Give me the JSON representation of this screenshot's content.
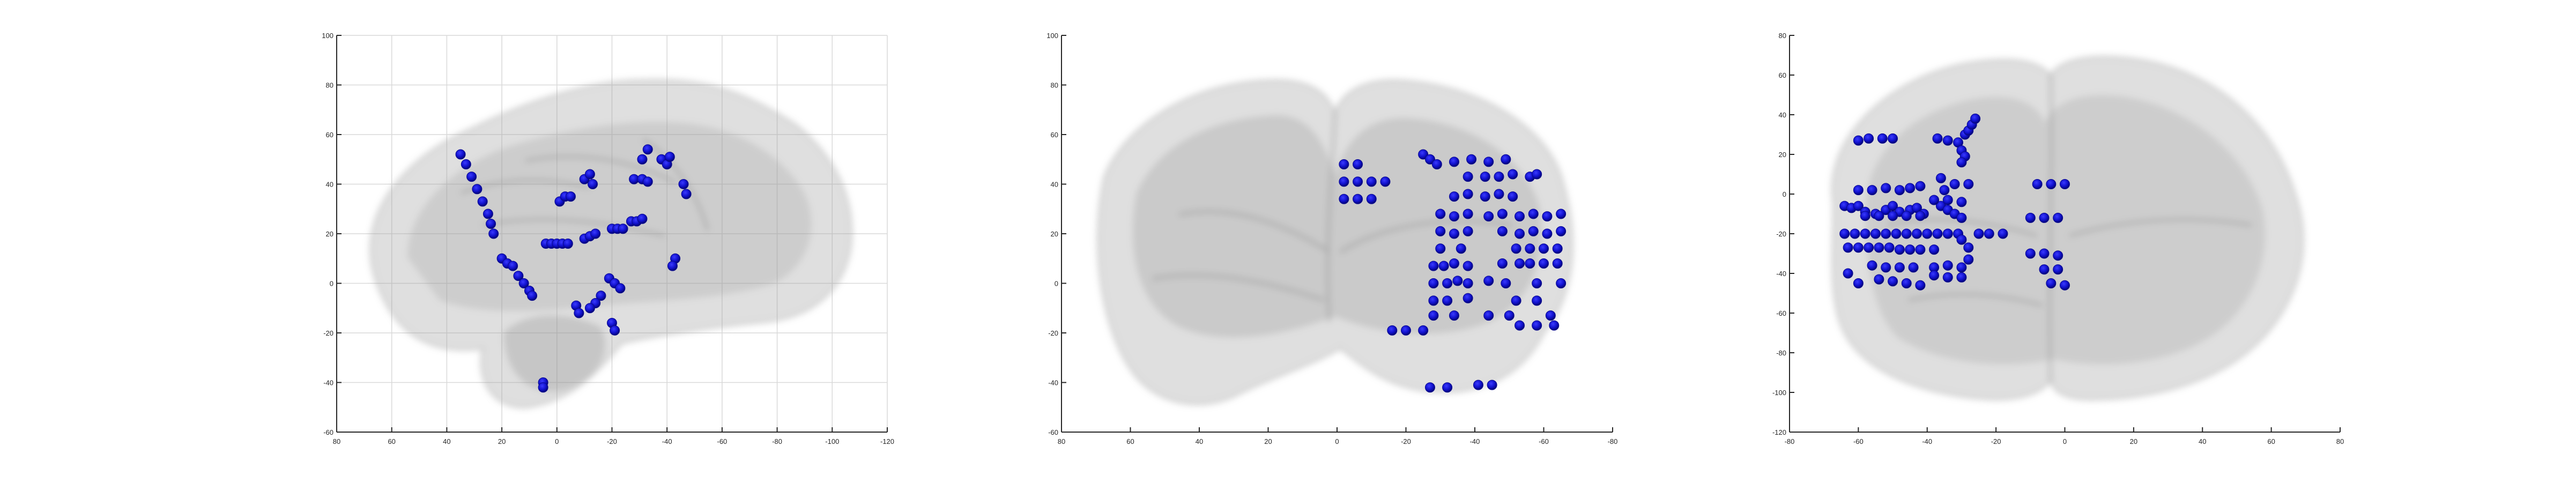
{
  "figure": {
    "background": "#ffffff",
    "axis_color": "#262626",
    "grid_color": "#d9d9d9",
    "brain_color": "#9a9a9a",
    "marker_color": "#1010cc"
  },
  "chart_data": [
    {
      "type": "scatter",
      "name": "sagittal",
      "grid": true,
      "xlim": [
        80,
        -120
      ],
      "ylim": [
        -60,
        100
      ],
      "xticks": [
        80,
        60,
        40,
        20,
        0,
        -20,
        -40,
        -60,
        -80,
        -100,
        -120
      ],
      "yticks": [
        -60,
        -40,
        -20,
        0,
        20,
        40,
        60,
        80,
        100
      ],
      "xtick_labels": [
        "80",
        "60",
        "40",
        "20",
        "0",
        "-20",
        "-40",
        "-60",
        "-80",
        "-100",
        "-120"
      ],
      "ytick_labels": [
        "-60",
        "-40",
        "-20",
        "0",
        "20",
        "40",
        "60",
        "80",
        "100"
      ],
      "points": [
        [
          35,
          52
        ],
        [
          33,
          48
        ],
        [
          31,
          43
        ],
        [
          29,
          38
        ],
        [
          27,
          33
        ],
        [
          25,
          28
        ],
        [
          24,
          24
        ],
        [
          23,
          20
        ],
        [
          20,
          10
        ],
        [
          18,
          8
        ],
        [
          16,
          7
        ],
        [
          14,
          3
        ],
        [
          12,
          0
        ],
        [
          10,
          -3
        ],
        [
          9,
          -5
        ],
        [
          4,
          16
        ],
        [
          2,
          16
        ],
        [
          0,
          16
        ],
        [
          -2,
          16
        ],
        [
          -4,
          16
        ],
        [
          -1,
          33
        ],
        [
          -3,
          35
        ],
        [
          -5,
          35
        ],
        [
          -10,
          18
        ],
        [
          -12,
          19
        ],
        [
          -14,
          20
        ],
        [
          -10,
          42
        ],
        [
          -12,
          44
        ],
        [
          -13,
          40
        ],
        [
          -20,
          22
        ],
        [
          -22,
          22
        ],
        [
          -24,
          22
        ],
        [
          -27,
          25
        ],
        [
          -29,
          25
        ],
        [
          -31,
          26
        ],
        [
          -28,
          42
        ],
        [
          -31,
          42
        ],
        [
          -33,
          41
        ],
        [
          -31,
          50
        ],
        [
          -33,
          54
        ],
        [
          -38,
          50
        ],
        [
          -40,
          48
        ],
        [
          -41,
          51
        ],
        [
          -46,
          40
        ],
        [
          -47,
          36
        ],
        [
          -43,
          10
        ],
        [
          -42,
          7
        ],
        [
          -19,
          2
        ],
        [
          -21,
          0
        ],
        [
          -23,
          -2
        ],
        [
          -20,
          -16
        ],
        [
          -21,
          -19
        ],
        [
          -16,
          -5
        ],
        [
          -14,
          -8
        ],
        [
          -12,
          -10
        ],
        [
          -7,
          -9
        ],
        [
          -8,
          -12
        ],
        [
          5,
          -40
        ],
        [
          5,
          -42
        ]
      ]
    },
    {
      "type": "scatter",
      "name": "coronal",
      "grid": false,
      "xlim": [
        80,
        -80
      ],
      "ylim": [
        -60,
        100
      ],
      "xticks": [
        80,
        60,
        40,
        20,
        0,
        -20,
        -40,
        -60,
        -80
      ],
      "yticks": [
        -60,
        -40,
        -20,
        0,
        20,
        40,
        60,
        80,
        100
      ],
      "xtick_labels": [
        "80",
        "60",
        "40",
        "20",
        "0",
        "-20",
        "-40",
        "-60",
        "-80"
      ],
      "ytick_labels": [
        "-60",
        "-40",
        "-20",
        "0",
        "20",
        "40",
        "60",
        "80",
        "100"
      ],
      "points": [
        [
          -2,
          48
        ],
        [
          -6,
          48
        ],
        [
          -2,
          41
        ],
        [
          -6,
          41
        ],
        [
          -10,
          41
        ],
        [
          -14,
          41
        ],
        [
          -2,
          34
        ],
        [
          -6,
          34
        ],
        [
          -10,
          34
        ],
        [
          -25,
          52
        ],
        [
          -27,
          50
        ],
        [
          -29,
          48
        ],
        [
          -34,
          49
        ],
        [
          -39,
          50
        ],
        [
          -44,
          49
        ],
        [
          -49,
          50
        ],
        [
          -38,
          43
        ],
        [
          -43,
          43
        ],
        [
          -47,
          43
        ],
        [
          -51,
          44
        ],
        [
          -56,
          43
        ],
        [
          -58,
          44
        ],
        [
          -34,
          35
        ],
        [
          -38,
          36
        ],
        [
          -43,
          35
        ],
        [
          -47,
          36
        ],
        [
          -51,
          35
        ],
        [
          -30,
          28
        ],
        [
          -34,
          27
        ],
        [
          -38,
          28
        ],
        [
          -44,
          27
        ],
        [
          -48,
          28
        ],
        [
          -53,
          27
        ],
        [
          -57,
          28
        ],
        [
          -61,
          27
        ],
        [
          -65,
          28
        ],
        [
          -30,
          21
        ],
        [
          -34,
          20
        ],
        [
          -38,
          21
        ],
        [
          -48,
          21
        ],
        [
          -53,
          20
        ],
        [
          -57,
          21
        ],
        [
          -61,
          20
        ],
        [
          -65,
          21
        ],
        [
          -30,
          14
        ],
        [
          -36,
          14
        ],
        [
          -52,
          14
        ],
        [
          -56,
          14
        ],
        [
          -60,
          14
        ],
        [
          -64,
          14
        ],
        [
          -28,
          7
        ],
        [
          -31,
          7
        ],
        [
          -34,
          8
        ],
        [
          -38,
          7
        ],
        [
          -48,
          8
        ],
        [
          -53,
          8
        ],
        [
          -56,
          8
        ],
        [
          -60,
          8
        ],
        [
          -64,
          8
        ],
        [
          -28,
          0
        ],
        [
          -32,
          0
        ],
        [
          -35,
          1
        ],
        [
          -38,
          0
        ],
        [
          -44,
          1
        ],
        [
          -49,
          0
        ],
        [
          -58,
          0
        ],
        [
          -65,
          0
        ],
        [
          -28,
          -7
        ],
        [
          -32,
          -7
        ],
        [
          -38,
          -6
        ],
        [
          -52,
          -7
        ],
        [
          -58,
          -7
        ],
        [
          -28,
          -13
        ],
        [
          -34,
          -13
        ],
        [
          -44,
          -13
        ],
        [
          -50,
          -13
        ],
        [
          -62,
          -13
        ],
        [
          -53,
          -17
        ],
        [
          -58,
          -17
        ],
        [
          -63,
          -17
        ],
        [
          -16,
          -19
        ],
        [
          -20,
          -19
        ],
        [
          -25,
          -19
        ],
        [
          -27,
          -42
        ],
        [
          -32,
          -42
        ],
        [
          -41,
          -41
        ],
        [
          -45,
          -41
        ]
      ]
    },
    {
      "type": "scatter",
      "name": "axial",
      "grid": false,
      "xlim": [
        -80,
        80
      ],
      "ylim": [
        -120,
        80
      ],
      "xticks": [
        -80,
        -60,
        -40,
        -20,
        0,
        20,
        40,
        60,
        80
      ],
      "yticks": [
        -120,
        -100,
        -80,
        -60,
        -40,
        -20,
        0,
        20,
        40,
        60,
        80
      ],
      "xtick_labels": [
        "-80",
        "-60",
        "-40",
        "-20",
        "0",
        "20",
        "40",
        "60",
        "80"
      ],
      "ytick_labels": [
        "-120",
        "-100",
        "-80",
        "-60",
        "-40",
        "-20",
        "0",
        "20",
        "40",
        "60",
        "80"
      ],
      "points": [
        [
          -60,
          27
        ],
        [
          -57,
          28
        ],
        [
          -53,
          28
        ],
        [
          -50,
          28
        ],
        [
          -37,
          28
        ],
        [
          -34,
          27
        ],
        [
          -31,
          26
        ],
        [
          -30,
          22
        ],
        [
          -29,
          30
        ],
        [
          -28,
          32
        ],
        [
          -27,
          35
        ],
        [
          -26,
          38
        ],
        [
          -29,
          19
        ],
        [
          -30,
          16
        ],
        [
          -64,
          -6
        ],
        [
          -62,
          -7
        ],
        [
          -60,
          -6
        ],
        [
          -58,
          -9
        ],
        [
          -55,
          -10
        ],
        [
          -52,
          -8
        ],
        [
          -50,
          -6
        ],
        [
          -48,
          -9
        ],
        [
          -45,
          -8
        ],
        [
          -43,
          -7
        ],
        [
          -41,
          -10
        ],
        [
          -60,
          2
        ],
        [
          -56,
          2
        ],
        [
          -52,
          3
        ],
        [
          -48,
          2
        ],
        [
          -45,
          3
        ],
        [
          -42,
          4
        ],
        [
          -58,
          -11
        ],
        [
          -54,
          -11
        ],
        [
          -50,
          -11
        ],
        [
          -46,
          -11
        ],
        [
          -42,
          -11
        ],
        [
          -36,
          -6
        ],
        [
          -34,
          -8
        ],
        [
          -32,
          -10
        ],
        [
          -30,
          -12
        ],
        [
          -35,
          2
        ],
        [
          -32,
          5
        ],
        [
          -28,
          5
        ],
        [
          -36,
          8
        ],
        [
          -38,
          -3
        ],
        [
          -34,
          -3
        ],
        [
          -30,
          -4
        ],
        [
          -64,
          -20
        ],
        [
          -61,
          -20
        ],
        [
          -58,
          -20
        ],
        [
          -55,
          -20
        ],
        [
          -52,
          -20
        ],
        [
          -49,
          -20
        ],
        [
          -46,
          -20
        ],
        [
          -43,
          -20
        ],
        [
          -40,
          -20
        ],
        [
          -37,
          -20
        ],
        [
          -34,
          -20
        ],
        [
          -31,
          -20
        ],
        [
          -63,
          -27
        ],
        [
          -60,
          -27
        ],
        [
          -57,
          -27
        ],
        [
          -54,
          -27
        ],
        [
          -51,
          -27
        ],
        [
          -48,
          -28
        ],
        [
          -45,
          -28
        ],
        [
          -42,
          -28
        ],
        [
          -38,
          -28
        ],
        [
          -30,
          -23
        ],
        [
          -28,
          -27
        ],
        [
          -25,
          -20
        ],
        [
          -22,
          -20
        ],
        [
          -18,
          -20
        ],
        [
          -10,
          -12
        ],
        [
          -6,
          -12
        ],
        [
          -2,
          -12
        ],
        [
          -8,
          5
        ],
        [
          -4,
          5
        ],
        [
          0,
          5
        ],
        [
          -10,
          -30
        ],
        [
          -6,
          -30
        ],
        [
          -2,
          -31
        ],
        [
          -56,
          -36
        ],
        [
          -52,
          -37
        ],
        [
          -48,
          -37
        ],
        [
          -44,
          -37
        ],
        [
          -38,
          -37
        ],
        [
          -34,
          -36
        ],
        [
          -30,
          -37
        ],
        [
          -28,
          -33
        ],
        [
          -54,
          -43
        ],
        [
          -50,
          -44
        ],
        [
          -46,
          -45
        ],
        [
          -42,
          -46
        ],
        [
          -38,
          -41
        ],
        [
          -34,
          -42
        ],
        [
          -30,
          -42
        ],
        [
          -63,
          -40
        ],
        [
          -60,
          -45
        ],
        [
          -6,
          -38
        ],
        [
          -2,
          -38
        ],
        [
          -4,
          -45
        ],
        [
          0,
          -46
        ]
      ]
    }
  ]
}
